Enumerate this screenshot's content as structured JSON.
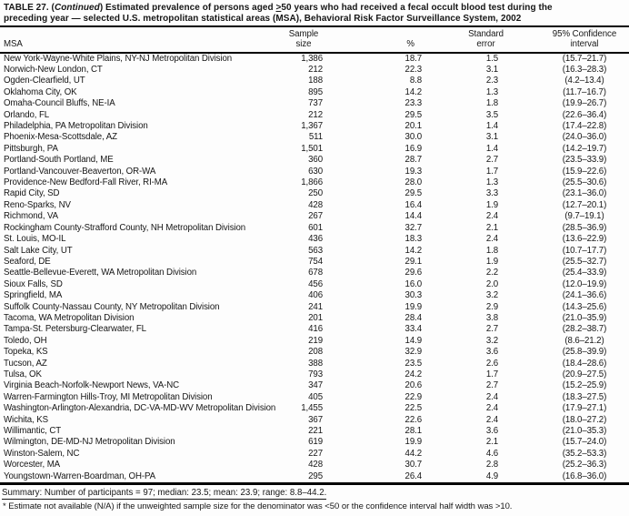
{
  "page": {
    "title": {
      "part1": "TABLE 27. (",
      "continued": "Continued",
      "part2": ") Estimated prevalence of persons aged ",
      "geq": ">",
      "part3": "50 years who had received a fecal occult blood test during the",
      "line2": "preceding year — selected U.S. metropolitan statistical areas (MSA), Behavioral Risk Factor Surveillance System, 2002"
    },
    "table": {
      "columns": {
        "msa": "MSA",
        "sample_line1": "Sample",
        "sample_line2": "size",
        "pct": "%",
        "se_line1": "Standard",
        "se_line2": "error",
        "ci_line1": "95% Confidence",
        "ci_line2": "interval"
      },
      "rows": [
        {
          "msa": "New York-Wayne-White Plains, NY-NJ Metropolitan Division",
          "sample": "1,386",
          "pct": "18.7",
          "se": "1.5",
          "ci": "(15.7–21.7)"
        },
        {
          "msa": "Norwich-New London, CT",
          "sample": "212",
          "pct": "22.3",
          "se": "3.1",
          "ci": "(16.3–28.3)"
        },
        {
          "msa": "Ogden-Clearfield, UT",
          "sample": "188",
          "pct": "8.8",
          "se": "2.3",
          "ci": "(4.2–13.4)"
        },
        {
          "msa": "Oklahoma City, OK",
          "sample": "895",
          "pct": "14.2",
          "se": "1.3",
          "ci": "(11.7–16.7)"
        },
        {
          "msa": "Omaha-Council Bluffs, NE-IA",
          "sample": "737",
          "pct": "23.3",
          "se": "1.8",
          "ci": "(19.9–26.7)"
        },
        {
          "msa": "Orlando, FL",
          "sample": "212",
          "pct": "29.5",
          "se": "3.5",
          "ci": "(22.6–36.4)"
        },
        {
          "msa": "Philadelphia, PA Metropolitan Division",
          "sample": "1,367",
          "pct": "20.1",
          "se": "1.4",
          "ci": "(17.4–22.8)"
        },
        {
          "msa": "Phoenix-Mesa-Scottsdale, AZ",
          "sample": "511",
          "pct": "30.0",
          "se": "3.1",
          "ci": "(24.0–36.0)"
        },
        {
          "msa": "Pittsburgh, PA",
          "sample": "1,501",
          "pct": "16.9",
          "se": "1.4",
          "ci": "(14.2–19.7)"
        },
        {
          "msa": "Portland-South Portland, ME",
          "sample": "360",
          "pct": "28.7",
          "se": "2.7",
          "ci": "(23.5–33.9)"
        },
        {
          "msa": "Portland-Vancouver-Beaverton, OR-WA",
          "sample": "630",
          "pct": "19.3",
          "se": "1.7",
          "ci": "(15.9–22.6)"
        },
        {
          "msa": "Providence-New Bedford-Fall River, RI-MA",
          "sample": "1,866",
          "pct": "28.0",
          "se": "1.3",
          "ci": "(25.5–30.6)"
        },
        {
          "msa": "Rapid City, SD",
          "sample": "250",
          "pct": "29.5",
          "se": "3.3",
          "ci": "(23.1–36.0)"
        },
        {
          "msa": "Reno-Sparks, NV",
          "sample": "428",
          "pct": "16.4",
          "se": "1.9",
          "ci": "(12.7–20.1)"
        },
        {
          "msa": "Richmond, VA",
          "sample": "267",
          "pct": "14.4",
          "se": "2.4",
          "ci": "(9.7–19.1)"
        },
        {
          "msa": "Rockingham County-Strafford County, NH Metropolitan Division",
          "sample": "601",
          "pct": "32.7",
          "se": "2.1",
          "ci": "(28.5–36.9)"
        },
        {
          "msa": "St. Louis, MO-IL",
          "sample": "436",
          "pct": "18.3",
          "se": "2.4",
          "ci": "(13.6–22.9)"
        },
        {
          "msa": "Salt Lake City, UT",
          "sample": "563",
          "pct": "14.2",
          "se": "1.8",
          "ci": "(10.7–17.7)"
        },
        {
          "msa": "Seaford, DE",
          "sample": "754",
          "pct": "29.1",
          "se": "1.9",
          "ci": "(25.5–32.7)"
        },
        {
          "msa": "Seattle-Bellevue-Everett, WA Metropolitan Division",
          "sample": "678",
          "pct": "29.6",
          "se": "2.2",
          "ci": "(25.4–33.9)"
        },
        {
          "msa": "Sioux Falls, SD",
          "sample": "456",
          "pct": "16.0",
          "se": "2.0",
          "ci": "(12.0–19.9)"
        },
        {
          "msa": "Springfield, MA",
          "sample": "406",
          "pct": "30.3",
          "se": "3.2",
          "ci": "(24.1–36.6)"
        },
        {
          "msa": "Suffolk County-Nassau County, NY Metropolitan Division",
          "sample": "241",
          "pct": "19.9",
          "se": "2.9",
          "ci": "(14.3–25.6)"
        },
        {
          "msa": "Tacoma, WA Metropolitan Division",
          "sample": "201",
          "pct": "28.4",
          "se": "3.8",
          "ci": "(21.0–35.9)"
        },
        {
          "msa": "Tampa-St. Petersburg-Clearwater, FL",
          "sample": "416",
          "pct": "33.4",
          "se": "2.7",
          "ci": "(28.2–38.7)"
        },
        {
          "msa": "Toledo, OH",
          "sample": "219",
          "pct": "14.9",
          "se": "3.2",
          "ci": "(8.6–21.2)"
        },
        {
          "msa": "Topeka, KS",
          "sample": "208",
          "pct": "32.9",
          "se": "3.6",
          "ci": "(25.8–39.9)"
        },
        {
          "msa": "Tucson, AZ",
          "sample": "388",
          "pct": "23.5",
          "se": "2.6",
          "ci": "(18.4–28.6)"
        },
        {
          "msa": "Tulsa, OK",
          "sample": "793",
          "pct": "24.2",
          "se": "1.7",
          "ci": "(20.9–27.5)"
        },
        {
          "msa": "Virginia Beach-Norfolk-Newport News, VA-NC",
          "sample": "347",
          "pct": "20.6",
          "se": "2.7",
          "ci": "(15.2–25.9)"
        },
        {
          "msa": "Warren-Farmington Hills-Troy, MI Metropolitan Division",
          "sample": "405",
          "pct": "22.9",
          "se": "2.4",
          "ci": "(18.3–27.5)"
        },
        {
          "msa": "Washington-Arlington-Alexandria, DC-VA-MD-WV Metropolitan Division",
          "sample": "1,455",
          "pct": "22.5",
          "se": "2.4",
          "ci": "(17.9–27.1)"
        },
        {
          "msa": "Wichita, KS",
          "sample": "367",
          "pct": "22.6",
          "se": "2.4",
          "ci": "(18.0–27.2)"
        },
        {
          "msa": "Willimantic, CT",
          "sample": "221",
          "pct": "28.1",
          "se": "3.6",
          "ci": "(21.0–35.3)"
        },
        {
          "msa": "Wilmington, DE-MD-NJ Metropolitan Division",
          "sample": "619",
          "pct": "19.9",
          "se": "2.1",
          "ci": "(15.7–24.0)"
        },
        {
          "msa": "Winston-Salem, NC",
          "sample": "227",
          "pct": "44.2",
          "se": "4.6",
          "ci": "(35.2–53.3)"
        },
        {
          "msa": "Worcester, MA",
          "sample": "428",
          "pct": "30.7",
          "se": "2.8",
          "ci": "(25.2–36.3)"
        },
        {
          "msa": "Youngstown-Warren-Boardman, OH-PA",
          "sample": "295",
          "pct": "26.4",
          "se": "4.9",
          "ci": "(16.8–36.0)"
        }
      ]
    },
    "summary": "Summary: Number of participants = 97; median: 23.5; mean: 23.9; range: 8.8–44.2.",
    "footnote": "* Estimate not available (N/A) if the unweighted sample size for the denominator was <50 or the confidence interval half width was >10.",
    "colors": {
      "text": "#161616",
      "background": "#fdfdfd",
      "rule": "#000000"
    }
  }
}
